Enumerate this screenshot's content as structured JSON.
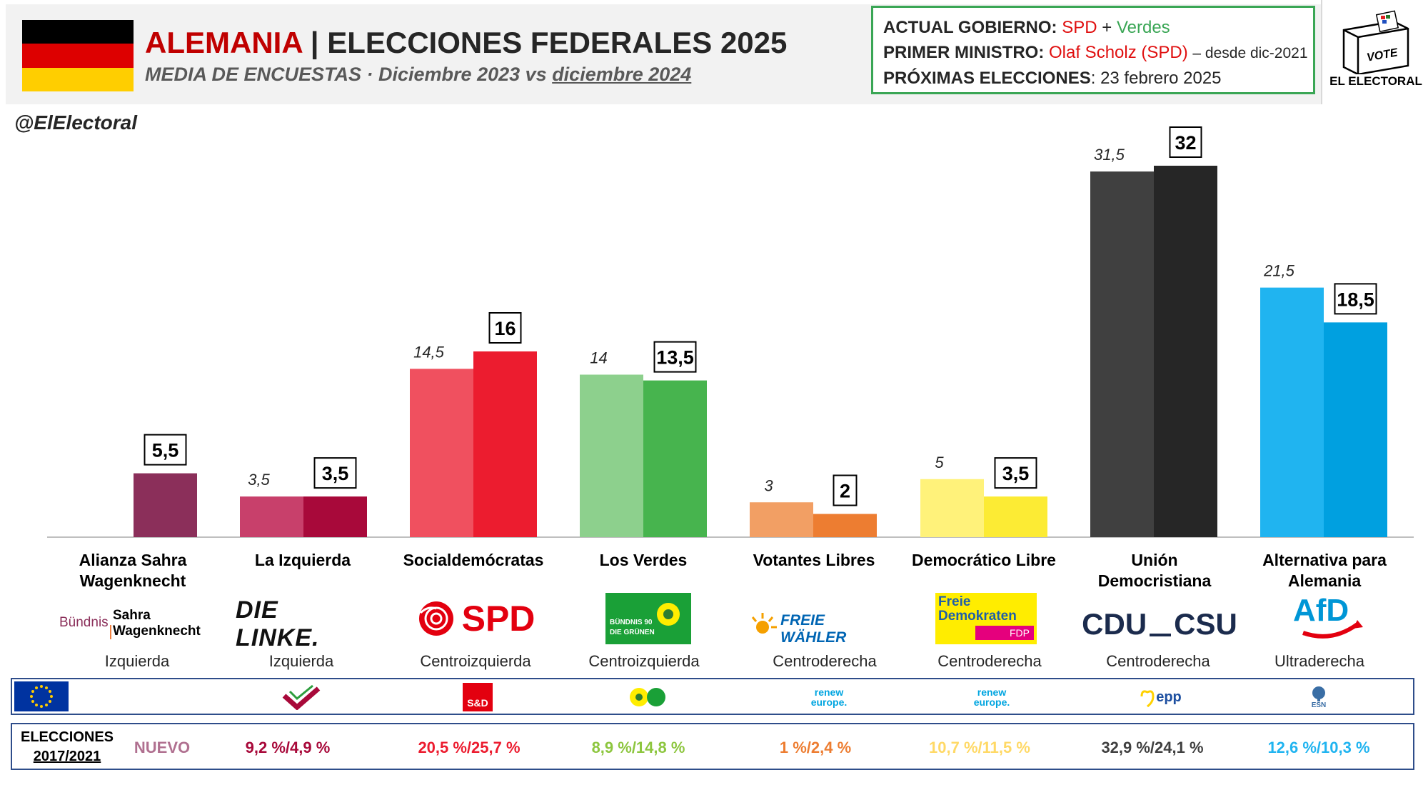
{
  "header": {
    "country": "ALEMANIA",
    "separator": "|",
    "title": "ELECCIONES FEDERALES 2025",
    "subtitle_prefix": "MEDIA DE ENCUESTAS · Diciembre 2023 vs ",
    "subtitle_date": "diciembre 2024"
  },
  "flag_colors": [
    "#000000",
    "#dd0000",
    "#ffce00"
  ],
  "infobox": {
    "gov_label": "ACTUAL GOBIERNO:",
    "gov_party1": "SPD",
    "gov_plus": "+",
    "gov_party2": "Verdes",
    "pm_label": "PRIMER MINISTRO:",
    "pm_name": "Olaf Scholz (SPD)",
    "pm_since": "– desde dic-2021",
    "next_label": "PRÓXIMAS ELECCIONES",
    "next_colon": ":",
    "next_date": "23 febrero 2025"
  },
  "brand": {
    "vote": "VOTE",
    "name": "EL ELECTORAL"
  },
  "handle": "@ElElectoral",
  "chart_data": {
    "type": "bar",
    "categories": [
      "Alianza Sahra\nWagenknecht",
      "La Izquierda",
      "Socialdemócratas",
      "Los Verdes",
      "Votantes Libres",
      "Democrático Libre",
      "Unión\nDemocristiana",
      "Alternativa para\nAlemania"
    ],
    "series": [
      {
        "name": "Diciembre 2023",
        "values": [
          null,
          3.5,
          14.5,
          14,
          3,
          5,
          31.5,
          21.5
        ],
        "labels": [
          "",
          "3,5",
          "14,5",
          "14",
          "3",
          "5",
          "31,5",
          "21,5"
        ]
      },
      {
        "name": "diciembre 2024",
        "values": [
          5.5,
          3.5,
          16,
          13.5,
          2,
          3.5,
          32,
          18.5
        ],
        "labels": [
          "5,5",
          "3,5",
          "16",
          "13,5",
          "2",
          "3,5",
          "32",
          "18,5"
        ]
      }
    ],
    "colors_2023": [
      "#8b2f5a",
      "#c8406b",
      "#f0505f",
      "#8dd08d",
      "#f29f64",
      "#fff27a",
      "#404040",
      "#20b4f0"
    ],
    "colors_2024": [
      "#8b2f5a",
      "#a8093a",
      "#ec1c2f",
      "#47b44e",
      "#ed7d31",
      "#fceb34",
      "#262626",
      "#00a0e0"
    ],
    "ylim": [
      0,
      35
    ]
  },
  "parties": [
    {
      "logo": "Bündnis Sahra Wagenknecht",
      "logo_top": "Bündnis",
      "logo_main": "Sahra",
      "logo_sub": "Wagenknecht",
      "ideology": "Izquierda"
    },
    {
      "logo": "DIE LINKE.",
      "ideology": "Izquierda"
    },
    {
      "logo": "SPD",
      "ideology": "Centroizquierda"
    },
    {
      "logo": "BÜNDNIS 90 DIE GRÜNEN",
      "logo_top": "BÜNDNIS 90",
      "logo_sub": "DIE GRÜNEN",
      "ideology": "Centroizquierda"
    },
    {
      "logo": "FREIE WÄHLER",
      "ideology": "Centroderecha"
    },
    {
      "logo": "Freie Demokraten FDP",
      "logo_top": "Freie",
      "logo_main": "Demokraten",
      "logo_sub": "FDP",
      "ideology": "Centroderecha"
    },
    {
      "logo": "CDU CSU",
      "logo_top": "CDU",
      "logo_sub": "CSU",
      "ideology": "Centroderecha"
    },
    {
      "logo": "AfD",
      "ideology": "Ultraderecha"
    }
  ],
  "eu_groups": [
    {
      "name": "",
      "icon": "none"
    },
    {
      "name": "",
      "icon": "left-group-icon"
    },
    {
      "name": "S&D",
      "icon": "sd-icon"
    },
    {
      "name": "",
      "icon": "greens-efa-icon"
    },
    {
      "name": "renew europe.",
      "line1": "renew",
      "line2": "europe.",
      "icon": "renew-icon"
    },
    {
      "name": "renew europe.",
      "line1": "renew",
      "line2": "europe.",
      "icon": "renew-icon"
    },
    {
      "name": "epp",
      "icon": "epp-icon"
    },
    {
      "name": "ESN",
      "icon": "esn-icon"
    }
  ],
  "elections": {
    "label_line1": "ELECCIONES",
    "label_line2": "2017/2021",
    "values": [
      "NUEVO",
      "9,2 %/4,9 %",
      "20,5 %/25,7 %",
      "8,9 %/14,8 %",
      "1 %/2,4 %",
      "10,7 %/11,5 %",
      "32,9 %/24,1 %",
      "12,6 %/10,3 %"
    ],
    "colors": [
      "#b07090",
      "#a8093a",
      "#ec1c2f",
      "#8dc63f",
      "#ed7d31",
      "#ffd966",
      "#404040",
      "#20b4f0"
    ]
  }
}
